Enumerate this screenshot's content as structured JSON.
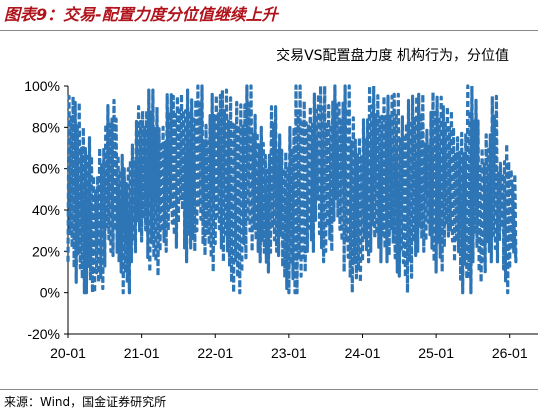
{
  "figure": {
    "title": "图表9：交易-配置力度分位值继续上升",
    "source": "来源：Wind，国金证券研究所"
  },
  "chart_data": {
    "type": "line",
    "title": "交易VS配置盘力度 机构行为，分位值",
    "xlabel": "",
    "ylabel": "",
    "x_tick_labels": [
      "20-01",
      "21-01",
      "22-01",
      "23-01",
      "24-01",
      "25-01",
      "26-01"
    ],
    "x_range": [
      "2020-01",
      "2026-01"
    ],
    "y_tick_labels": [
      "-20%",
      "0%",
      "20%",
      "40%",
      "60%",
      "80%",
      "100%"
    ],
    "ylim": [
      -20,
      100
    ],
    "y_unit": "%",
    "grid": false,
    "line_style": "dashed",
    "series": [
      {
        "name": "",
        "color": "#2e75b6",
        "x": [
          "2020-01",
          "2020-02",
          "2020-03",
          "2020-04",
          "2020-05",
          "2020-06",
          "2020-07",
          "2020-08",
          "2020-09",
          "2020-10",
          "2020-11",
          "2020-12",
          "2021-01",
          "2021-02",
          "2021-03",
          "2021-04",
          "2021-05",
          "2021-06",
          "2021-07",
          "2021-08",
          "2021-09",
          "2021-10",
          "2021-11",
          "2021-12",
          "2022-01",
          "2022-02",
          "2022-03",
          "2022-04",
          "2022-05",
          "2022-06",
          "2022-07",
          "2022-08",
          "2022-09",
          "2022-10",
          "2022-11",
          "2022-12",
          "2023-01",
          "2023-02",
          "2023-03",
          "2023-04",
          "2023-05",
          "2023-06",
          "2023-07",
          "2023-08",
          "2023-09",
          "2023-10",
          "2023-11",
          "2023-12",
          "2024-01",
          "2024-02",
          "2024-03",
          "2024-04",
          "2024-05",
          "2024-06",
          "2024-07",
          "2024-08",
          "2024-09",
          "2024-10",
          "2024-11",
          "2024-12",
          "2025-01",
          "2025-02",
          "2025-03",
          "2025-04",
          "2025-05",
          "2025-06",
          "2025-07",
          "2025-08",
          "2025-09",
          "2025-10",
          "2025-11",
          "2025-12",
          "2026-01"
        ],
        "low": [
          15,
          5,
          0,
          0,
          0,
          2,
          20,
          18,
          10,
          0,
          15,
          30,
          25,
          10,
          8,
          20,
          30,
          22,
          35,
          15,
          20,
          30,
          18,
          10,
          25,
          15,
          5,
          0,
          10,
          30,
          20,
          15,
          10,
          20,
          18,
          2,
          0,
          0,
          10,
          20,
          35,
          15,
          20,
          35,
          25,
          10,
          0,
          5,
          15,
          20,
          22,
          15,
          18,
          10,
          8,
          0,
          18,
          20,
          25,
          15,
          10,
          22,
          25,
          15,
          0,
          0,
          15,
          5,
          20,
          15,
          25,
          0,
          15
        ],
        "high": [
          100,
          92,
          85,
          75,
          60,
          70,
          95,
          93,
          70,
          60,
          75,
          90,
          92,
          98,
          95,
          80,
          100,
          95,
          100,
          98,
          98,
          100,
          85,
          96,
          100,
          98,
          100,
          92,
          96,
          100,
          90,
          80,
          70,
          90,
          80,
          68,
          85,
          100,
          98,
          90,
          100,
          100,
          95,
          100,
          96,
          100,
          90,
          75,
          88,
          100,
          100,
          95,
          100,
          96,
          90,
          93,
          100,
          96,
          82,
          97,
          100,
          90,
          92,
          75,
          82,
          100,
          98,
          70,
          80,
          95,
          65,
          72,
          60
        ],
        "end_value": 60
      }
    ]
  }
}
